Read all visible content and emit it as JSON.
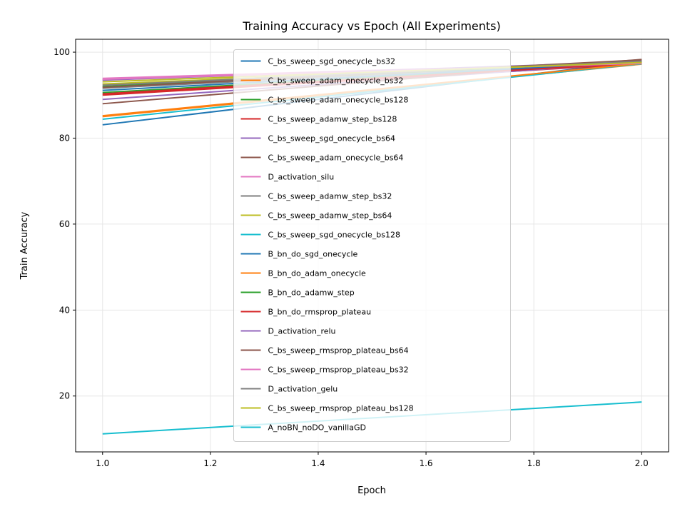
{
  "chart_data": {
    "type": "line",
    "title": "Training Accuracy vs Epoch (All Experiments)",
    "xlabel": "Epoch",
    "ylabel": "Train Accuracy",
    "xlim": [
      0.95,
      2.05
    ],
    "ylim": [
      7,
      103
    ],
    "xticks": [
      "1.0",
      "1.2",
      "1.4",
      "1.6",
      "1.8",
      "2.0"
    ],
    "yticks": [
      "20",
      "40",
      "60",
      "80",
      "100"
    ],
    "grid": true,
    "legend_position": "center",
    "x": [
      1,
      2
    ],
    "series": [
      {
        "name": "C_bs_sweep_sgd_onecycle_bs32",
        "color": "#1f77b4",
        "values": [
          83.1,
          97.9
        ]
      },
      {
        "name": "C_bs_sweep_adam_onecycle_bs32",
        "color": "#ff7f0e",
        "values": [
          85.0,
          97.2
        ]
      },
      {
        "name": "C_bs_sweep_adam_onecycle_bs128",
        "color": "#2ca02c",
        "values": [
          90.6,
          97.6
        ]
      },
      {
        "name": "C_bs_sweep_adamw_step_bs128",
        "color": "#d62728",
        "values": [
          90.0,
          97.3
        ]
      },
      {
        "name": "C_bs_sweep_sgd_onecycle_bs64",
        "color": "#9467bd",
        "values": [
          89.0,
          97.6
        ]
      },
      {
        "name": "C_bs_sweep_adam_onecycle_bs64",
        "color": "#8c564b",
        "values": [
          88.0,
          98.3
        ]
      },
      {
        "name": "D_activation_silu",
        "color": "#e377c2",
        "values": [
          93.9,
          97.6
        ]
      },
      {
        "name": "C_bs_sweep_adamw_step_bs32",
        "color": "#7f7f7f",
        "values": [
          91.6,
          97.8
        ]
      },
      {
        "name": "C_bs_sweep_adamw_step_bs64",
        "color": "#bcbd22",
        "values": [
          92.6,
          97.6
        ]
      },
      {
        "name": "C_bs_sweep_sgd_onecycle_bs128",
        "color": "#17becf",
        "values": [
          84.4,
          97.3
        ]
      },
      {
        "name": "B_bn_do_sgd_onecycle",
        "color": "#1f77b4",
        "values": [
          91.1,
          97.7
        ]
      },
      {
        "name": "B_bn_do_adam_onecycle",
        "color": "#ff7f0e",
        "values": [
          85.2,
          97.4
        ]
      },
      {
        "name": "B_bn_do_adamw_step",
        "color": "#2ca02c",
        "values": [
          92.0,
          97.9
        ]
      },
      {
        "name": "B_bn_do_rmsprop_plateau",
        "color": "#d62728",
        "values": [
          90.3,
          97.5
        ]
      },
      {
        "name": "D_activation_relu",
        "color": "#9467bd",
        "values": [
          93.5,
          97.8
        ]
      },
      {
        "name": "C_bs_sweep_rmsprop_plateau_bs64",
        "color": "#8c564b",
        "values": [
          91.8,
          98.2
        ]
      },
      {
        "name": "C_bs_sweep_rmsprop_plateau_bs32",
        "color": "#e377c2",
        "values": [
          93.7,
          97.4
        ]
      },
      {
        "name": "D_activation_gelu",
        "color": "#7f7f7f",
        "values": [
          92.3,
          97.9
        ]
      },
      {
        "name": "C_bs_sweep_rmsprop_plateau_bs128",
        "color": "#bcbd22",
        "values": [
          93.1,
          97.6
        ]
      },
      {
        "name": "A_noBN_noDO_vanillaGD",
        "color": "#17becf",
        "values": [
          11.2,
          18.6
        ]
      }
    ]
  }
}
